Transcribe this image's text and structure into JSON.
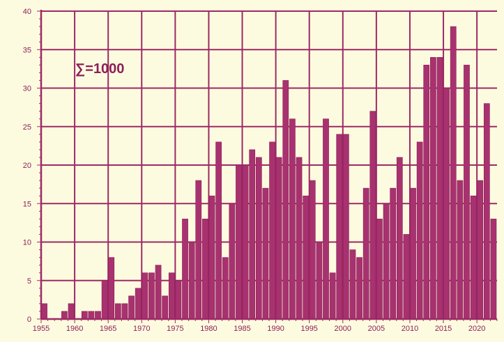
{
  "colors": {
    "background": "#fdfbdf",
    "bar": "#a8326f",
    "bar_edge": "#8c1f5a",
    "grid": "#9c2a66",
    "text": "#8c1f5a"
  },
  "chart_data": {
    "type": "bar",
    "title": "",
    "xlabel": "",
    "ylabel": "",
    "annotation": "∑=1000",
    "grid": true,
    "ylim": [
      0,
      40
    ],
    "yticks": [
      "0",
      "5",
      "10",
      "15",
      "20",
      "25",
      "30",
      "35",
      "40"
    ],
    "xticks": [
      "1955",
      "1960",
      "1965",
      "1970",
      "1975",
      "1980",
      "1985",
      "1990",
      "1995",
      "2000",
      "2005",
      "2010",
      "2015",
      "2020"
    ],
    "categories": [
      1955,
      1956,
      1957,
      1958,
      1959,
      1960,
      1961,
      1962,
      1963,
      1964,
      1965,
      1966,
      1967,
      1968,
      1969,
      1970,
      1971,
      1972,
      1973,
      1974,
      1975,
      1976,
      1977,
      1978,
      1979,
      1980,
      1981,
      1982,
      1983,
      1984,
      1985,
      1986,
      1987,
      1988,
      1989,
      1990,
      1991,
      1992,
      1993,
      1994,
      1995,
      1996,
      1997,
      1998,
      1999,
      2000,
      2001,
      2002,
      2003,
      2004,
      2005,
      2006,
      2007,
      2008,
      2009,
      2010,
      2011,
      2012,
      2013,
      2014,
      2015,
      2016,
      2017,
      2018,
      2019,
      2020,
      2021,
      2022
    ],
    "values": [
      2,
      0,
      0,
      1,
      2,
      0,
      1,
      1,
      1,
      5,
      8,
      2,
      2,
      3,
      4,
      6,
      6,
      7,
      3,
      6,
      5,
      13,
      10,
      18,
      13,
      16,
      23,
      8,
      15,
      20,
      20,
      22,
      21,
      17,
      23,
      21,
      31,
      26,
      21,
      16,
      18,
      10,
      26,
      6,
      24,
      24,
      9,
      8,
      17,
      27,
      13,
      15,
      17,
      21,
      11,
      17,
      23,
      33,
      34,
      34,
      30,
      38,
      18,
      33,
      16,
      18,
      28,
      13
    ]
  }
}
